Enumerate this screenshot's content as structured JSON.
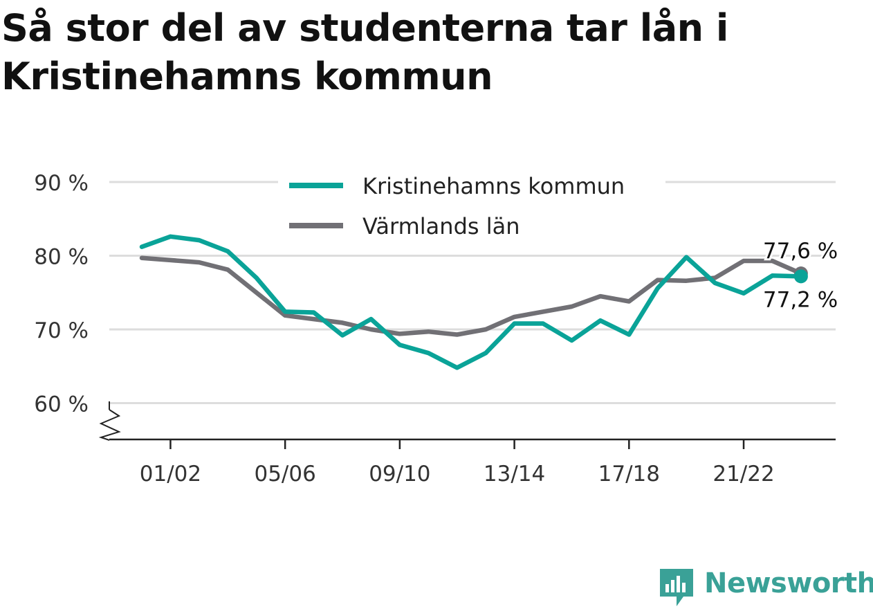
{
  "title": "Så stor del av studenterna tar lån i Kristinehamns kommun",
  "brand": {
    "name": "Newsworthy",
    "icon": "newsworthy-logo-icon"
  },
  "colors": {
    "kristinehamn": "#0aa398",
    "varmland": "#717075",
    "grid": "#dddddd",
    "axis": "#222222",
    "text": "#333333"
  },
  "chart_data": {
    "type": "line",
    "title": "Så stor del av studenterna tar lån i Kristinehamns kommun",
    "xlabel": "",
    "ylabel": "",
    "ylim": [
      55,
      90
    ],
    "y_ticks": [
      60,
      70,
      80,
      90
    ],
    "y_tick_labels": [
      "60 %",
      "70 %",
      "80 %",
      "90 %"
    ],
    "y_axis_break": true,
    "grid": true,
    "legend_position": "top-center",
    "x": [
      "00/01",
      "01/02",
      "02/03",
      "03/04",
      "04/05",
      "05/06",
      "06/07",
      "07/08",
      "08/09",
      "09/10",
      "10/11",
      "11/12",
      "12/13",
      "13/14",
      "14/15",
      "15/16",
      "16/17",
      "17/18",
      "18/19",
      "19/20",
      "20/21",
      "21/22",
      "22/23",
      "23/24"
    ],
    "x_ticks": [
      "01/02",
      "05/06",
      "09/10",
      "13/14",
      "17/18",
      "21/22"
    ],
    "series": [
      {
        "name": "Kristinehamns kommun",
        "color": "#0aa398",
        "values": [
          81.2,
          82.6,
          82.1,
          80.6,
          77.0,
          72.4,
          72.3,
          69.2,
          71.4,
          67.9,
          66.8,
          64.8,
          66.8,
          70.8,
          70.8,
          68.5,
          71.2,
          69.3,
          75.6,
          79.8,
          76.3,
          74.9,
          77.3,
          77.2
        ],
        "end_label": "77,2 %"
      },
      {
        "name": "Värmlands län",
        "color": "#717075",
        "values": [
          79.7,
          79.4,
          79.1,
          78.1,
          75.0,
          71.9,
          71.4,
          70.9,
          70.0,
          69.4,
          69.7,
          69.3,
          70.0,
          71.7,
          72.4,
          73.1,
          74.5,
          73.8,
          76.7,
          76.6,
          77.0,
          79.3,
          79.3,
          77.6
        ],
        "end_label": "77,6 %"
      }
    ]
  }
}
